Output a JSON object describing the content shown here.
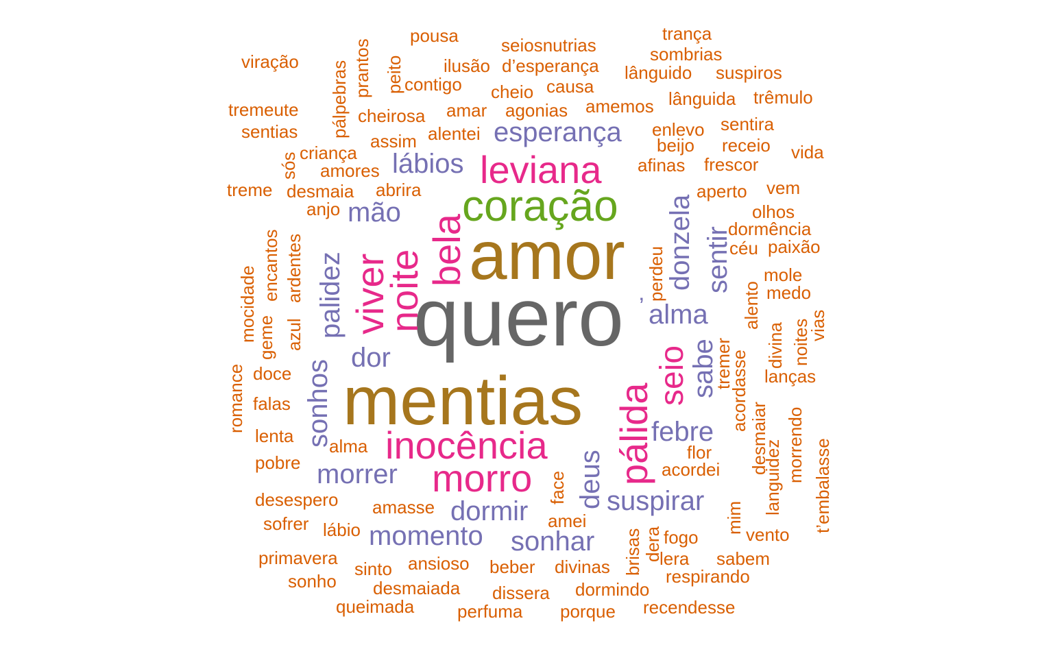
{
  "colors": {
    "orange": "#d95f02",
    "purple": "#7570b3",
    "pink": "#e7298a",
    "green": "#66a61e",
    "brown": "#a6761d",
    "gray": "#666666"
  },
  "words": [
    {
      "text": "quero",
      "color": "gray"
    },
    {
      "text": "amor",
      "color": "brown"
    },
    {
      "text": "mentias",
      "color": "brown"
    },
    {
      "text": "coração",
      "color": "green"
    },
    {
      "text": "leviana",
      "color": "pink"
    },
    {
      "text": "inocência",
      "color": "pink"
    },
    {
      "text": "morro",
      "color": "pink"
    },
    {
      "text": "esperança",
      "color": "purple"
    },
    {
      "text": "lábios",
      "color": "purple"
    },
    {
      "text": "mão",
      "color": "purple"
    },
    {
      "text": "dor",
      "color": "purple"
    },
    {
      "text": "morrer",
      "color": "purple"
    },
    {
      "text": "dormir",
      "color": "purple"
    },
    {
      "text": "momento",
      "color": "purple"
    },
    {
      "text": "sonhar",
      "color": "purple"
    },
    {
      "text": "suspirar",
      "color": "purple"
    },
    {
      "text": "febre",
      "color": "purple"
    },
    {
      "text": "alma",
      "color": "purple"
    },
    {
      "text": "’",
      "color": "purple"
    },
    {
      "text": "bela",
      "color": "pink"
    },
    {
      "text": "noite",
      "color": "pink"
    },
    {
      "text": "viver",
      "color": "pink"
    },
    {
      "text": "palidez",
      "color": "purple"
    },
    {
      "text": "sonhos",
      "color": "purple"
    },
    {
      "text": "pálida",
      "color": "pink"
    },
    {
      "text": "seio",
      "color": "pink"
    },
    {
      "text": "sabe",
      "color": "purple"
    },
    {
      "text": "donzela",
      "color": "purple"
    },
    {
      "text": "sentir",
      "color": "purple"
    },
    {
      "text": "deus",
      "color": "purple"
    },
    {
      "text": "face",
      "color": "orange"
    },
    {
      "text": "perdeu",
      "color": "orange"
    },
    {
      "text": "viração",
      "color": "orange"
    },
    {
      "text": "tremeute",
      "color": "orange"
    },
    {
      "text": "sentias",
      "color": "orange"
    },
    {
      "text": "treme",
      "color": "orange"
    },
    {
      "text": "pálpebras",
      "color": "orange"
    },
    {
      "text": "prantos",
      "color": "orange"
    },
    {
      "text": "peito",
      "color": "orange"
    },
    {
      "text": "pousa",
      "color": "orange"
    },
    {
      "text": "ilusão",
      "color": "orange"
    },
    {
      "text": "contigo",
      "color": "orange"
    },
    {
      "text": "seiosnutrias",
      "color": "orange"
    },
    {
      "text": "d’esperança",
      "color": "orange"
    },
    {
      "text": "cheio",
      "color": "orange"
    },
    {
      "text": "causa",
      "color": "orange"
    },
    {
      "text": "trança",
      "color": "orange"
    },
    {
      "text": "sombrias",
      "color": "orange"
    },
    {
      "text": "lânguido",
      "color": "orange"
    },
    {
      "text": "suspiros",
      "color": "orange"
    },
    {
      "text": "lânguida",
      "color": "orange"
    },
    {
      "text": "trêmulo",
      "color": "orange"
    },
    {
      "text": "amemos",
      "color": "orange"
    },
    {
      "text": "cheirosa",
      "color": "orange"
    },
    {
      "text": "amar",
      "color": "orange"
    },
    {
      "text": "agonias",
      "color": "orange"
    },
    {
      "text": "alentei",
      "color": "orange"
    },
    {
      "text": "assim",
      "color": "orange"
    },
    {
      "text": "enlevo",
      "color": "orange"
    },
    {
      "text": "sentira",
      "color": "orange"
    },
    {
      "text": "beijo",
      "color": "orange"
    },
    {
      "text": "receio",
      "color": "orange"
    },
    {
      "text": "vida",
      "color": "orange"
    },
    {
      "text": "afinas",
      "color": "orange"
    },
    {
      "text": "frescor",
      "color": "orange"
    },
    {
      "text": "sós",
      "color": "orange"
    },
    {
      "text": "criança",
      "color": "orange"
    },
    {
      "text": "amores",
      "color": "orange"
    },
    {
      "text": "desmaia",
      "color": "orange"
    },
    {
      "text": "abrira",
      "color": "orange"
    },
    {
      "text": "anjo",
      "color": "orange"
    },
    {
      "text": "aperto",
      "color": "orange"
    },
    {
      "text": "vem",
      "color": "orange"
    },
    {
      "text": "olhos",
      "color": "orange"
    },
    {
      "text": "dormência",
      "color": "orange"
    },
    {
      "text": "céu",
      "color": "orange"
    },
    {
      "text": "paixão",
      "color": "orange"
    },
    {
      "text": "mole",
      "color": "orange"
    },
    {
      "text": "medo",
      "color": "orange"
    },
    {
      "text": "alento",
      "color": "orange"
    },
    {
      "text": "vias",
      "color": "orange"
    },
    {
      "text": "noites",
      "color": "orange"
    },
    {
      "text": "divina",
      "color": "orange"
    },
    {
      "text": "tremer",
      "color": "orange"
    },
    {
      "text": "acordasse",
      "color": "orange"
    },
    {
      "text": "lanças",
      "color": "orange"
    },
    {
      "text": "desmaiar",
      "color": "orange"
    },
    {
      "text": "morrendo",
      "color": "orange"
    },
    {
      "text": "languidez",
      "color": "orange"
    },
    {
      "text": "t’embalasse",
      "color": "orange"
    },
    {
      "text": "mim",
      "color": "orange"
    },
    {
      "text": "vento",
      "color": "orange"
    },
    {
      "text": "flor",
      "color": "orange"
    },
    {
      "text": "acordei",
      "color": "orange"
    },
    {
      "text": "fogo",
      "color": "orange"
    },
    {
      "text": "lera",
      "color": "orange"
    },
    {
      "text": "sabem",
      "color": "orange"
    },
    {
      "text": "respirando",
      "color": "orange"
    },
    {
      "text": "dera",
      "color": "orange"
    },
    {
      "text": "brisas",
      "color": "orange"
    },
    {
      "text": "amei",
      "color": "orange"
    },
    {
      "text": "divinas",
      "color": "orange"
    },
    {
      "text": "dormindo",
      "color": "orange"
    },
    {
      "text": "recendesse",
      "color": "orange"
    },
    {
      "text": "porque",
      "color": "orange"
    },
    {
      "text": "perfuma",
      "color": "orange"
    },
    {
      "text": "dissera",
      "color": "orange"
    },
    {
      "text": "beber",
      "color": "orange"
    },
    {
      "text": "ansioso",
      "color": "orange"
    },
    {
      "text": "desmaiada",
      "color": "orange"
    },
    {
      "text": "queimada",
      "color": "orange"
    },
    {
      "text": "sinto",
      "color": "orange"
    },
    {
      "text": "sonho",
      "color": "orange"
    },
    {
      "text": "primavera",
      "color": "orange"
    },
    {
      "text": "sofrer",
      "color": "orange"
    },
    {
      "text": "lábio",
      "color": "orange"
    },
    {
      "text": "desespero",
      "color": "orange"
    },
    {
      "text": "amasse",
      "color": "orange"
    },
    {
      "text": "pobre",
      "color": "orange"
    },
    {
      "text": "alma",
      "color": "orange"
    },
    {
      "text": "lenta",
      "color": "orange"
    },
    {
      "text": "falas",
      "color": "orange"
    },
    {
      "text": "doce",
      "color": "orange"
    },
    {
      "text": "romance",
      "color": "orange"
    },
    {
      "text": "geme",
      "color": "orange"
    },
    {
      "text": "mocidade",
      "color": "orange"
    },
    {
      "text": "encantos",
      "color": "orange"
    },
    {
      "text": "azul",
      "color": "orange"
    },
    {
      "text": "ardentes",
      "color": "orange"
    }
  ]
}
